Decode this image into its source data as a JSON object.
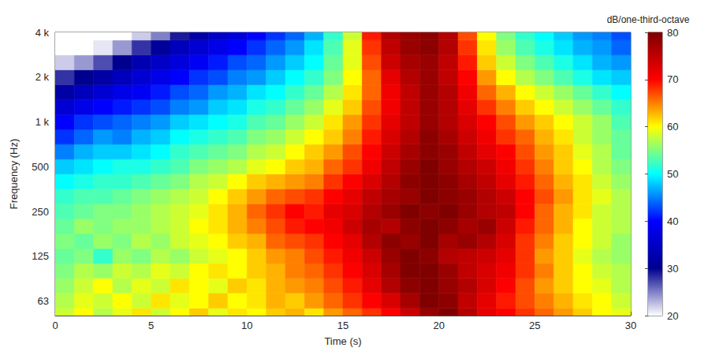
{
  "chart_data": {
    "type": "heatmap",
    "xlabel": "Time (s)",
    "ylabel": "Frequency (Hz)",
    "xlim": [
      0,
      30
    ],
    "xticks": [
      0,
      5,
      10,
      15,
      20,
      25,
      30
    ],
    "ylim": [
      50,
      4000
    ],
    "yticks": [
      63,
      125,
      250,
      500,
      {
        "value": 1000,
        "label": "1 k"
      },
      {
        "value": 2000,
        "label": "2 k"
      },
      {
        "value": 4000,
        "label": "4 k"
      }
    ],
    "log": "y",
    "grid": false,
    "time_bins": [
      0,
      1,
      2,
      3,
      4,
      5,
      6,
      7,
      8,
      9,
      10,
      11,
      12,
      13,
      14,
      15,
      16,
      17,
      18,
      19,
      20,
      21,
      22,
      23,
      24,
      25,
      26,
      27,
      28,
      29,
      30
    ],
    "frequency_bins": [
      45,
      56,
      71,
      89,
      112,
      141,
      178,
      224,
      282,
      355,
      447,
      562,
      708,
      891,
      1122,
      1413,
      1778,
      2239,
      2818,
      3548,
      4467
    ],
    "levels": [
      [
        58,
        60,
        57,
        59,
        61,
        58,
        60,
        62,
        59,
        61,
        60,
        62,
        63,
        61,
        64,
        66,
        68,
        70,
        74,
        78,
        80,
        76,
        72,
        70,
        68,
        66,
        64,
        62,
        60,
        59
      ],
      [
        57,
        59,
        58,
        60,
        58,
        61,
        59,
        60,
        62,
        60,
        61,
        63,
        62,
        64,
        66,
        68,
        70,
        73,
        77,
        80,
        79,
        75,
        72,
        69,
        67,
        65,
        63,
        61,
        60,
        58
      ],
      [
        56,
        58,
        60,
        57,
        59,
        58,
        61,
        60,
        59,
        62,
        61,
        63,
        64,
        65,
        67,
        69,
        72,
        76,
        79,
        80,
        78,
        76,
        73,
        70,
        67,
        64,
        62,
        60,
        59,
        57
      ],
      [
        55,
        57,
        56,
        58,
        57,
        59,
        58,
        60,
        61,
        60,
        62,
        63,
        65,
        66,
        68,
        70,
        73,
        77,
        80,
        80,
        78,
        75,
        73,
        71,
        68,
        65,
        62,
        60,
        58,
        57
      ],
      [
        54,
        55,
        52,
        56,
        55,
        57,
        56,
        58,
        59,
        60,
        62,
        64,
        65,
        67,
        69,
        71,
        74,
        78,
        80,
        79,
        76,
        75,
        74,
        72,
        68,
        64,
        62,
        59,
        57,
        56
      ],
      [
        55,
        54,
        56,
        55,
        57,
        56,
        58,
        59,
        60,
        62,
        63,
        66,
        67,
        68,
        70,
        72,
        76,
        79,
        78,
        80,
        77,
        78,
        76,
        73,
        68,
        65,
        62,
        60,
        58,
        56
      ],
      [
        54,
        56,
        55,
        56,
        56,
        57,
        58,
        60,
        61,
        63,
        65,
        67,
        69,
        70,
        71,
        74,
        77,
        76,
        79,
        80,
        79,
        77,
        78,
        74,
        69,
        66,
        63,
        60,
        58,
        57
      ],
      [
        53,
        54,
        55,
        55,
        56,
        57,
        58,
        59,
        61,
        63,
        66,
        68,
        70,
        69,
        72,
        73,
        76,
        78,
        80,
        79,
        80,
        78,
        76,
        75,
        70,
        66,
        63,
        61,
        58,
        57
      ],
      [
        52,
        53,
        53,
        54,
        55,
        56,
        57,
        58,
        60,
        62,
        64,
        66,
        67,
        68,
        70,
        72,
        75,
        77,
        78,
        80,
        79,
        78,
        76,
        74,
        70,
        67,
        64,
        61,
        59,
        57
      ],
      [
        50,
        51,
        52,
        52,
        53,
        54,
        55,
        57,
        58,
        60,
        62,
        63,
        64,
        65,
        68,
        70,
        73,
        76,
        79,
        80,
        79,
        77,
        75,
        72,
        69,
        66,
        63,
        61,
        58,
        56
      ],
      [
        48,
        49,
        50,
        51,
        51,
        52,
        53,
        55,
        56,
        57,
        59,
        60,
        62,
        63,
        66,
        68,
        71,
        75,
        78,
        80,
        78,
        76,
        74,
        71,
        68,
        65,
        62,
        60,
        57,
        55
      ],
      [
        45,
        47,
        48,
        48,
        49,
        50,
        52,
        53,
        54,
        55,
        57,
        58,
        60,
        62,
        64,
        67,
        70,
        74,
        77,
        79,
        78,
        75,
        72,
        70,
        67,
        64,
        62,
        59,
        57,
        54
      ],
      [
        42,
        44,
        46,
        45,
        47,
        48,
        50,
        51,
        52,
        53,
        55,
        56,
        58,
        60,
        62,
        65,
        69,
        73,
        76,
        79,
        77,
        74,
        71,
        68,
        66,
        63,
        61,
        58,
        56,
        54
      ],
      [
        40,
        42,
        43,
        44,
        45,
        46,
        48,
        49,
        50,
        51,
        53,
        54,
        56,
        58,
        61,
        64,
        68,
        72,
        75,
        78,
        76,
        73,
        70,
        67,
        64,
        62,
        60,
        58,
        56,
        53
      ],
      [
        36,
        38,
        40,
        41,
        42,
        43,
        45,
        46,
        48,
        49,
        51,
        52,
        54,
        56,
        59,
        62,
        67,
        71,
        75,
        78,
        76,
        72,
        68,
        65,
        62,
        60,
        58,
        56,
        54,
        52
      ],
      [
        32,
        34,
        36,
        38,
        39,
        41,
        43,
        44,
        46,
        47,
        49,
        50,
        52,
        54,
        57,
        61,
        66,
        71,
        75,
        78,
        76,
        71,
        66,
        63,
        60,
        58,
        56,
        54,
        52,
        50
      ],
      [
        28,
        30,
        32,
        34,
        36,
        38,
        40,
        42,
        43,
        45,
        46,
        48,
        50,
        52,
        55,
        60,
        66,
        72,
        76,
        78,
        75,
        70,
        64,
        60,
        57,
        55,
        53,
        51,
        49,
        48
      ],
      [
        22,
        24,
        27,
        30,
        33,
        35,
        37,
        39,
        41,
        43,
        44,
        46,
        48,
        50,
        54,
        59,
        67,
        74,
        77,
        78,
        75,
        69,
        62,
        58,
        55,
        53,
        51,
        49,
        47,
        46
      ],
      [
        20,
        20,
        21,
        24,
        28,
        31,
        34,
        36,
        38,
        40,
        42,
        44,
        46,
        49,
        53,
        59,
        68,
        75,
        78,
        79,
        76,
        68,
        61,
        56,
        53,
        51,
        49,
        47,
        46,
        44
      ],
      [
        20,
        20,
        20,
        20,
        22,
        25,
        29,
        32,
        35,
        37,
        40,
        42,
        44,
        47,
        52,
        58,
        69,
        76,
        78,
        79,
        76,
        67,
        60,
        55,
        52,
        50,
        48,
        46,
        45,
        43
      ]
    ],
    "colorbar": {
      "label": "dB/one-third-octave",
      "range": [
        20,
        80
      ],
      "ticks": [
        20,
        30,
        40,
        50,
        60,
        70,
        80
      ]
    }
  }
}
